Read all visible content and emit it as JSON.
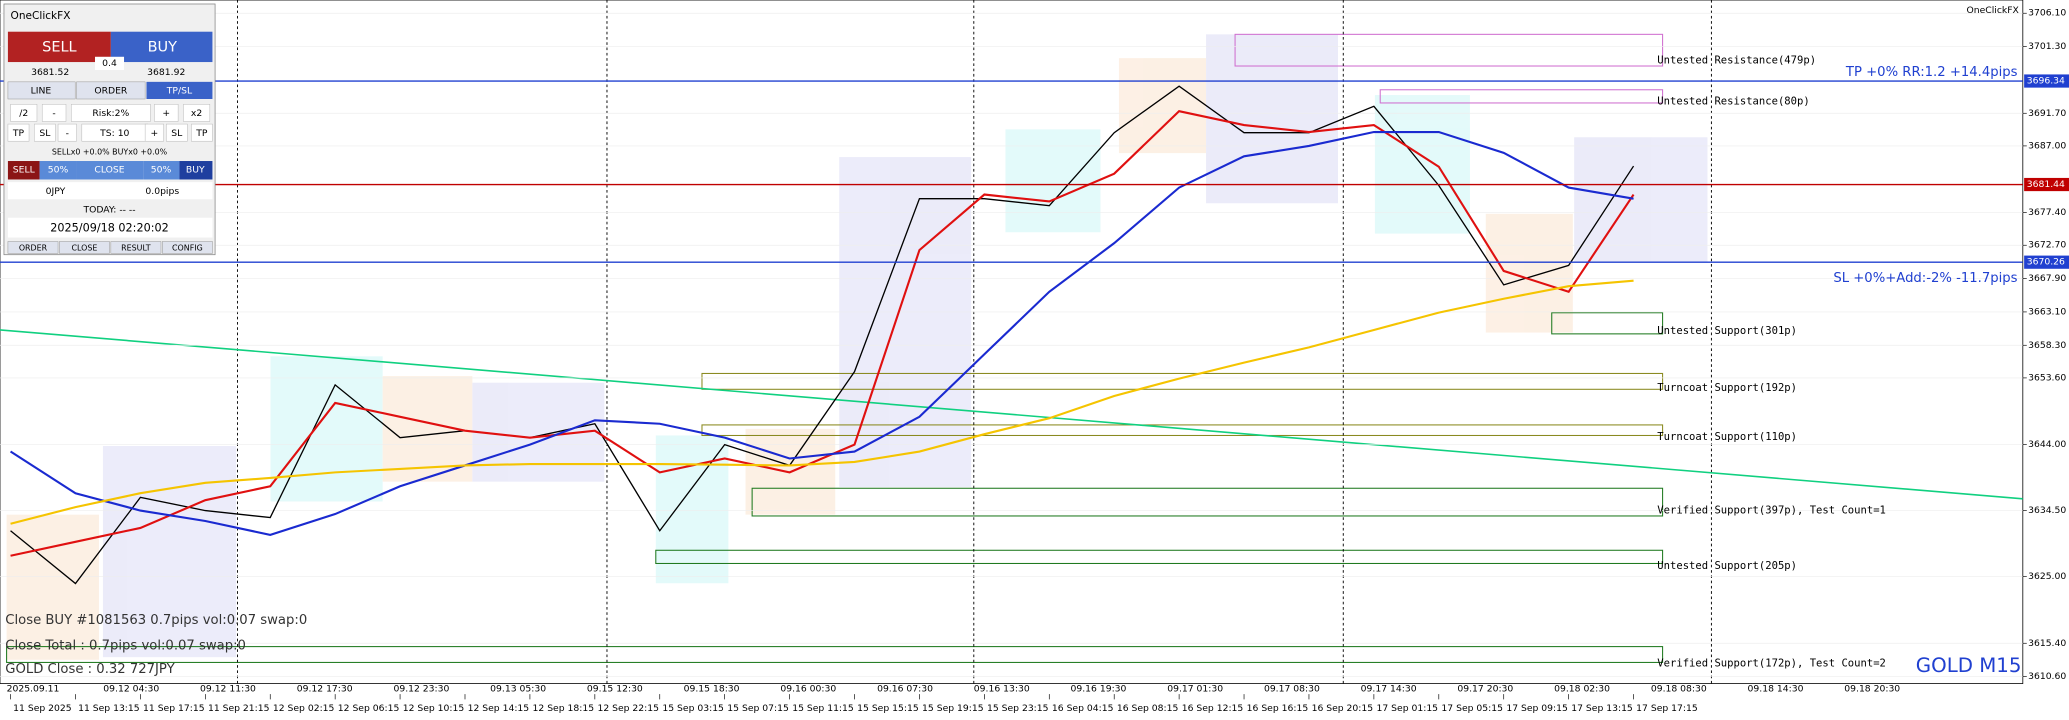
{
  "panel": {
    "title": "OneClickFX",
    "sell": "SELL",
    "buy": "BUY",
    "lot": "0.4",
    "bid": "3681.52",
    "ask": "3681.92",
    "tabs": [
      "LINE",
      "ORDER",
      "TP/SL"
    ],
    "row1": [
      "/2",
      "-",
      "Risk:2%",
      "+",
      "x2"
    ],
    "row2": [
      "TP",
      "SL",
      "-",
      "TS: 10",
      "+",
      "SL",
      "TP"
    ],
    "positions": "SELLx0 +0.0%  BUYx0 +0.0%",
    "row3": [
      "SELL",
      "50%",
      "CLOSE",
      "50%",
      "BUY"
    ],
    "profit": "0JPY",
    "pips": "0.0pips",
    "today": "TODAY: -- --",
    "clock": "2025/09/18  02:20:02",
    "footer": [
      "ORDER",
      "CLOSE",
      "RESULT",
      "CONFIG"
    ]
  },
  "chart_data": {
    "type": "line",
    "title": "GOLD M15",
    "brand": "OneClickFX",
    "categories": [
      "11 Sep 2025",
      "11 Sep 13:15",
      "11 Sep 17:15",
      "11 Sep 21:15",
      "12 Sep 02:15",
      "12 Sep 06:15",
      "12 Sep 10:15",
      "12 Sep 14:15",
      "12 Sep 18:15",
      "12 Sep 22:15",
      "15 Sep 03:15",
      "15 Sep 07:15",
      "15 Sep 11:15",
      "15 Sep 15:15",
      "15 Sep 19:15",
      "15 Sep 23:15",
      "16 Sep 04:15",
      "16 Sep 08:15",
      "16 Sep 12:15",
      "16 Sep 16:15",
      "16 Sep 20:15",
      "17 Sep 01:15",
      "17 Sep 05:15",
      "17 Sep 09:15",
      "17 Sep 13:15",
      "17 Sep 17:15"
    ],
    "top_labels": [
      "2025.09.11",
      "09.12 04:30",
      "09.12 11:30",
      "09.12 17:30",
      "09.12 23:30",
      "09.13 05:30",
      "09.15 12:30",
      "09.15 18:30",
      "09.16 00:30",
      "09.16 07:30",
      "09.16 13:30",
      "09.16 19:30",
      "09.17 01:30",
      "09.17 08:30",
      "09.17 14:30",
      "09.17 20:30",
      "09.18 02:30",
      "09.18 08:30",
      "09.18 14:30",
      "09.18 20:30"
    ],
    "series": [
      {
        "color": "#000000",
        "values": [
          3631.6,
          3624,
          3636.4,
          3634.5,
          3633.5,
          3652.6,
          3645,
          3646,
          3645,
          3647,
          3631.6,
          3644,
          3641,
          3654.5,
          3679.4,
          3679.4,
          3678.4,
          3688.9,
          3695.6,
          3688.9,
          3688.9,
          3692.7,
          3681.3,
          3667,
          3669.8,
          3684.1
        ]
      },
      {
        "color": "#e01010",
        "values": [
          3628,
          3630,
          3632,
          3636,
          3638,
          3650,
          3648,
          3646,
          3645,
          3646,
          3640,
          3642,
          3640,
          3644,
          3672,
          3680,
          3679,
          3683,
          3692,
          3690,
          3689,
          3690,
          3684,
          3669,
          3666,
          3680
        ]
      },
      {
        "color": "#1a2ad0",
        "values": [
          3643,
          3637,
          3634.5,
          3633,
          3631,
          3634,
          3638,
          3641,
          3644,
          3647.5,
          3647,
          3645,
          3642,
          3643,
          3648,
          3657,
          3666,
          3673,
          3681,
          3685.5,
          3687,
          3689,
          3689,
          3686,
          3681,
          3679.4
        ]
      },
      {
        "color": "#f5c400",
        "values": [
          3632.6,
          3635,
          3637,
          3638.5,
          3639.2,
          3640,
          3640.5,
          3641,
          3641.2,
          3641.2,
          3641.2,
          3641.1,
          3641,
          3641.5,
          3643,
          3645.5,
          3647.8,
          3651,
          3653.5,
          3655.8,
          3658,
          3660.5,
          3663,
          3665,
          3666.8,
          3667.6
        ]
      }
    ],
    "ylim": [
      3609.6,
      3708
    ],
    "yticks": [
      {
        "value": 3706.1,
        "label": "3706.10"
      },
      {
        "value": 3701.3,
        "label": "3701.30"
      },
      {
        "value": 3691.7,
        "label": "3691.70"
      },
      {
        "value": 3687,
        "label": "3687.00"
      },
      {
        "value": 3677.4,
        "label": "3677.40"
      },
      {
        "value": 3672.7,
        "label": "3672.70"
      },
      {
        "value": 3667.9,
        "label": "3667.90"
      },
      {
        "value": 3663.1,
        "label": "3663.10"
      },
      {
        "value": 3658.3,
        "label": "3658.30"
      },
      {
        "value": 3653.6,
        "label": "3653.60"
      },
      {
        "value": 3644,
        "label": "3644.00"
      },
      {
        "value": 3634.5,
        "label": "3634.50"
      },
      {
        "value": 3625,
        "label": "3625.00"
      },
      {
        "value": 3615.4,
        "label": "3615.40"
      },
      {
        "value": 3610.6,
        "label": "3610.60"
      }
    ],
    "levels": [
      {
        "value": 3696.34,
        "label": "3696.34",
        "text": "TP +0% RR:1.2 +14.4pips",
        "color": "#2040d0"
      },
      {
        "value": 3681.44,
        "label": "3681.44",
        "color": "#c00000"
      },
      {
        "value": 3670.26,
        "label": "3670.26",
        "text": "SL +0%+Add:-2% -11.7pips",
        "color": "#2040d0"
      }
    ],
    "zones": [
      "Untested Resistance(479p)",
      "Untested Resistance(80p)",
      "Untested Support(301p)",
      "Turncoat Support(192p)",
      "Turncoat Support(110p)",
      "Verified Support(397p), Test Count=1",
      "Untested Support(205p)",
      "Verified Support(172p), Test Count=2"
    ],
    "notes": [
      "Close BUY #1081563 0.7pips vol:0.07 swap:0",
      "Close Total : 0.7pips vol:0.07 swap:0",
      "GOLD Close : 0.32 727JPY"
    ]
  }
}
